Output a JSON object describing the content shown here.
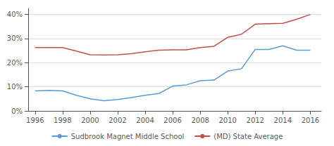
{
  "chart_data": {
    "type": "line",
    "x": [
      1996,
      1997,
      1998,
      1999,
      2000,
      2001,
      2002,
      2003,
      2004,
      2005,
      2006,
      2007,
      2008,
      2009,
      2010,
      2011,
      2012,
      2013,
      2014,
      2015,
      2016
    ],
    "series": [
      {
        "name": "Sudbrook Magnet Middle School",
        "color": "#5b9bd5",
        "values": [
          0.083,
          0.085,
          0.083,
          0.065,
          0.05,
          0.042,
          0.047,
          0.055,
          0.065,
          0.072,
          0.103,
          0.108,
          0.125,
          0.128,
          0.165,
          0.175,
          0.255,
          0.255,
          0.27,
          0.252,
          0.252
        ]
      },
      {
        "name": "(MD) State Average",
        "color": "#c0504d",
        "values": [
          0.263,
          0.263,
          0.263,
          0.248,
          0.233,
          0.232,
          0.233,
          0.237,
          0.245,
          0.252,
          0.253,
          0.253,
          0.263,
          0.268,
          0.305,
          0.318,
          0.36,
          0.362,
          0.363,
          0.38,
          0.4
        ]
      }
    ],
    "xlim": [
      1995.5,
      2016.8
    ],
    "xticks": [
      1996,
      1998,
      2000,
      2002,
      2004,
      2006,
      2008,
      2010,
      2012,
      2014,
      2016
    ],
    "ylim": [
      0,
      0.425
    ],
    "yticks": [
      {
        "value": 0,
        "label": "0%"
      },
      {
        "value": 0.1,
        "label": "10%"
      },
      {
        "value": 0.2,
        "label": "20%"
      },
      {
        "value": 0.3,
        "label": "30%"
      },
      {
        "value": 0.4,
        "label": "40%"
      }
    ],
    "grid": true,
    "legend": "bottom"
  }
}
